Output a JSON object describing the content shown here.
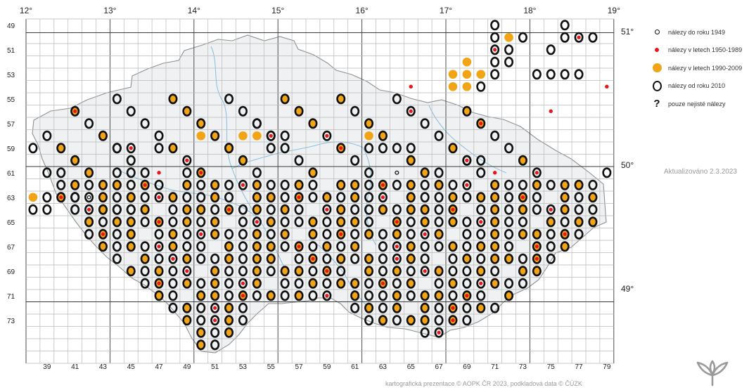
{
  "longitude_labels": [
    "12°",
    "13°",
    "14°",
    "15°",
    "16°",
    "17°",
    "18°",
    "19°"
  ],
  "latitude_labels": [
    "51°",
    "50°",
    "49°"
  ],
  "row_labels": [
    "49",
    "51",
    "53",
    "55",
    "57",
    "59",
    "61",
    "63",
    "65",
    "67",
    "69",
    "71",
    "73"
  ],
  "column_labels": [
    "39",
    "41",
    "43",
    "45",
    "47",
    "49",
    "51",
    "53",
    "55",
    "57",
    "59",
    "61",
    "63",
    "65",
    "67",
    "69",
    "71",
    "73",
    "75",
    "77",
    "79"
  ],
  "legend": {
    "old": "nálezy do roku 1949",
    "red": "nálezy v letech 1950-1989",
    "orange": "nálezy v letech 1990-2009",
    "new": "nálezy od roku 2010",
    "uncertain": "pouze nejisté nálezy",
    "uncertain_symbol": "?"
  },
  "updated": "Aktualizováno 2.3.2023",
  "credits": "kartografická prezentace © AOPK ČR 2023, podkladová data © ČÚZK",
  "colors": {
    "red": "#e8161b",
    "orange": "#f2a417",
    "ring": "#111111",
    "grid": "#b9b9b9",
    "country_fill": "#f0f1f2",
    "river": "#8ec2de"
  },
  "map_data": {
    "first_col": 38,
    "first_row": 49,
    "codes": {
      "O": "new",
      "R": "red",
      "Y": "orange",
      "o": "old",
      "E": "new+orange",
      "D": "new+red",
      "Q": "new+old",
      "T": "new+orange+red"
    },
    "rows": [
      ".................................O....O.......................................",
      ".................................OYO..ODO.....................................",
      ".................................DO..O.........................................",
      "...............................Y.OO.............................................",
      "..............................YYYO..OOOO...OOOO..............................",
      "...........................R..YYO........R......OOOO..........................",
      "..........................................................................",
      ".....................................R.......................................",
      "................O..........................................O...................",
      "............Y..YYDO.....Y...................O.................................",
      "O.....OD.O....O..O......OO.O........................................O.........",
      "...............................DO.........................O.......................",
      ".OO...OO.R.O..............o..O...R.......O..O........R........OOOOOOO...O...................",
      "..........................................................................................................",
      "YOOOQ.......................................................................................................",
      "OO...OOOO..................................................................................................."
    ]
  }
}
